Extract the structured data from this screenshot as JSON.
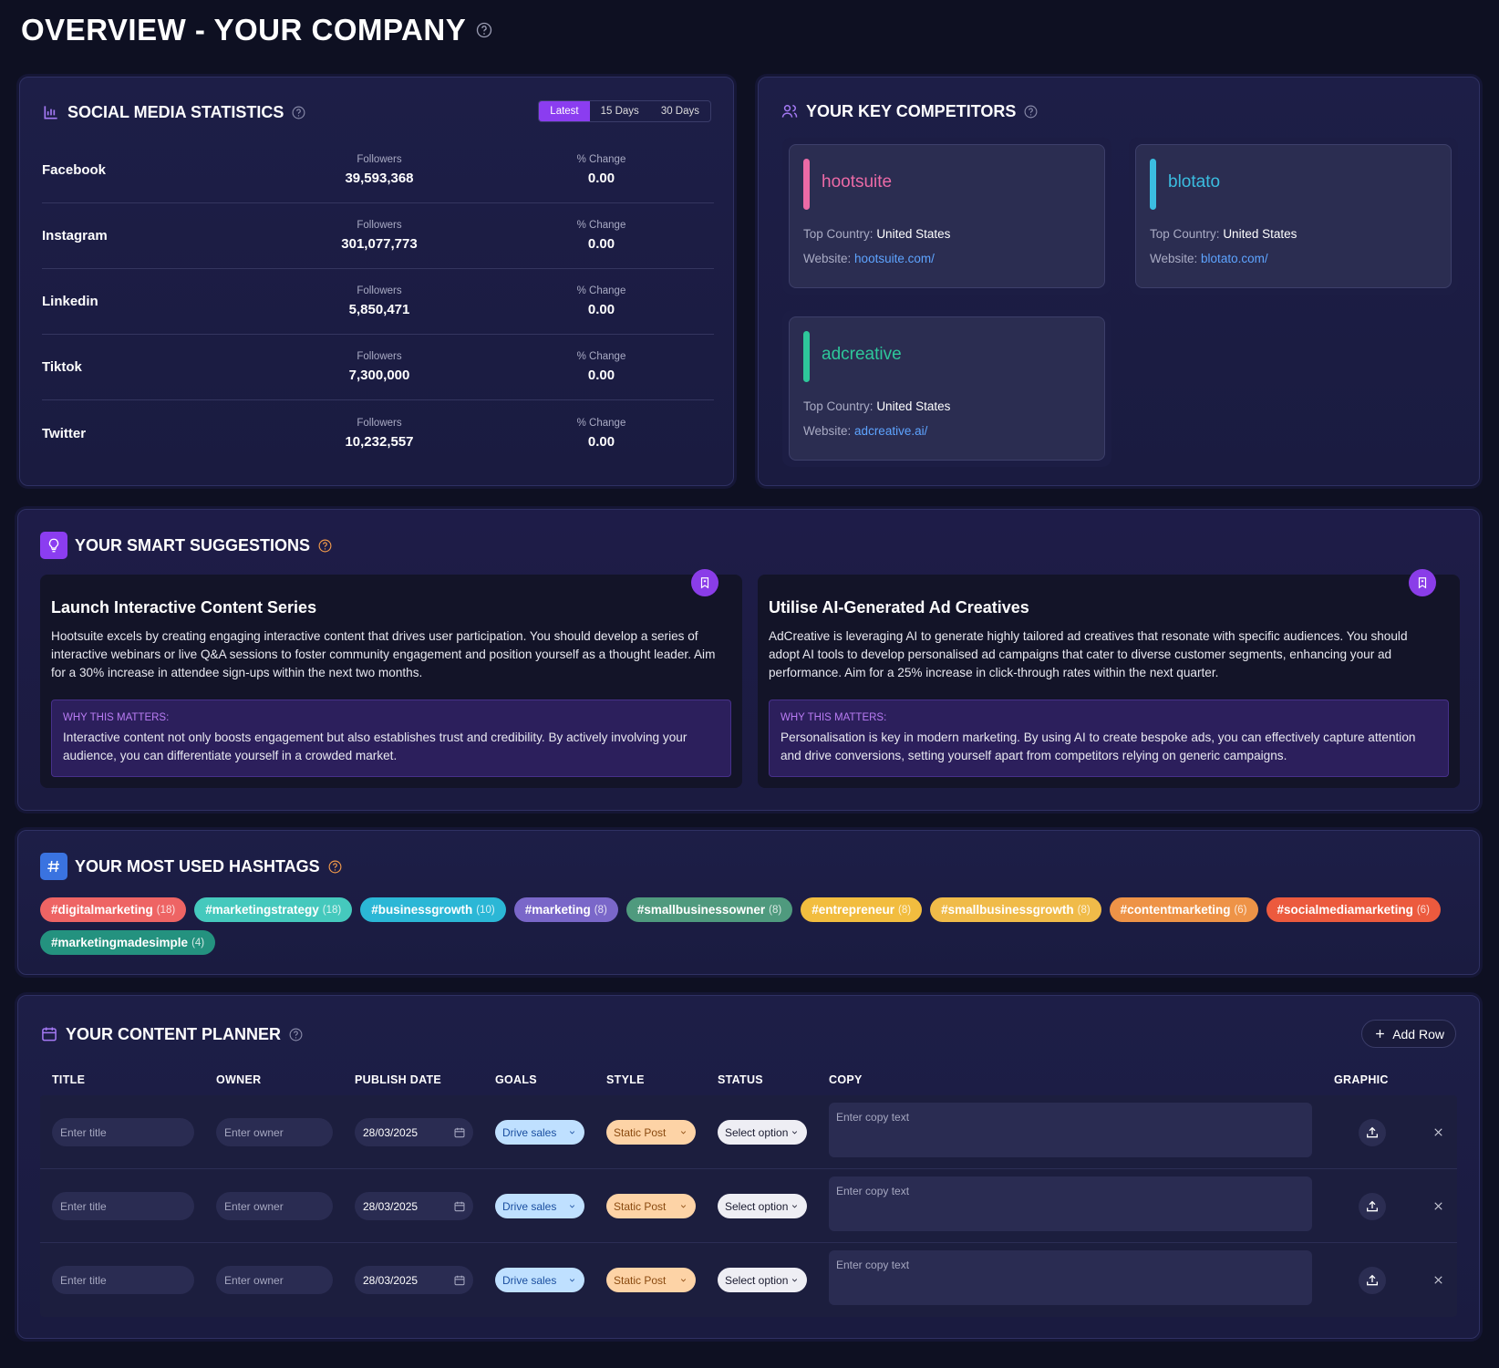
{
  "header": {
    "title": "OVERVIEW - YOUR COMPANY"
  },
  "social": {
    "title": "SOCIAL MEDIA STATISTICS",
    "tabs": [
      "Latest",
      "15 Days",
      "30 Days"
    ],
    "followers_label": "Followers",
    "change_label": "% Change",
    "rows": [
      {
        "platform": "Facebook",
        "followers": "39,593,368",
        "change": "0.00"
      },
      {
        "platform": "Instagram",
        "followers": "301,077,773",
        "change": "0.00"
      },
      {
        "platform": "Linkedin",
        "followers": "5,850,471",
        "change": "0.00"
      },
      {
        "platform": "Tiktok",
        "followers": "7,300,000",
        "change": "0.00"
      },
      {
        "platform": "Twitter",
        "followers": "10,232,557",
        "change": "0.00"
      }
    ]
  },
  "competitors": {
    "title": "YOUR KEY COMPETITORS",
    "country_label": "Top Country:",
    "website_label": "Website:",
    "items": [
      {
        "name": "hootsuite",
        "color": "#ec6aa6",
        "country": "United States",
        "website": "hootsuite.com/"
      },
      {
        "name": "blotato",
        "color": "#3bbde0",
        "country": "United States",
        "website": "blotato.com/"
      },
      {
        "name": "adcreative",
        "color": "#2ec79a",
        "country": "United States",
        "website": "adcreative.ai/"
      }
    ]
  },
  "suggestions": {
    "title": "YOUR SMART SUGGESTIONS",
    "why_label": "WHY THIS MATTERS:",
    "items": [
      {
        "title": "Launch Interactive Content Series",
        "body": "Hootsuite excels by creating engaging interactive content that drives user participation. You should develop a series of interactive webinars or live Q&A sessions to foster community engagement and position yourself as a thought leader. Aim for a 30% increase in attendee sign-ups within the next two months.",
        "why": "Interactive content not only boosts engagement but also establishes trust and credibility. By actively involving your audience, you can differentiate yourself in a crowded market."
      },
      {
        "title": "Utilise AI-Generated Ad Creatives",
        "body": "AdCreative is leveraging AI to generate highly tailored ad creatives that resonate with specific audiences. You should adopt AI tools to develop personalised ad campaigns that cater to diverse customer segments, enhancing your ad performance. Aim for a 25% increase in click-through rates within the next quarter.",
        "why": "Personalisation is key in modern marketing. By using AI to create bespoke ads, you can effectively capture attention and drive conversions, setting yourself apart from competitors relying on generic campaigns."
      }
    ]
  },
  "hashtags": {
    "title": "YOUR MOST USED HASHTAGS",
    "items": [
      {
        "tag": "#digitalmarketing",
        "count": "(18)",
        "color": "#ee6464"
      },
      {
        "tag": "#marketingstrategy",
        "count": "(18)",
        "color": "#45c9bd"
      },
      {
        "tag": "#businessgrowth",
        "count": "(10)",
        "color": "#2bb7d6"
      },
      {
        "tag": "#marketing",
        "count": "(8)",
        "color": "#7a67c9"
      },
      {
        "tag": "#smallbusinessowner",
        "count": "(8)",
        "color": "#4f9a7e"
      },
      {
        "tag": "#entrepreneur",
        "count": "(8)",
        "color": "#f2bd3f"
      },
      {
        "tag": "#smallbusinessgrowth",
        "count": "(8)",
        "color": "#f0bb49"
      },
      {
        "tag": "#contentmarketing",
        "count": "(6)",
        "color": "#ee9347"
      },
      {
        "tag": "#socialmediamarketing",
        "count": "(6)",
        "color": "#ec5a3e"
      },
      {
        "tag": "#marketingmadesimple",
        "count": "(4)",
        "color": "#24927f"
      }
    ]
  },
  "planner": {
    "title": "YOUR CONTENT PLANNER",
    "add_row": "Add Row",
    "columns": [
      "TITLE",
      "OWNER",
      "PUBLISH DATE",
      "GOALS",
      "STYLE",
      "STATUS",
      "COPY",
      "GRAPHIC"
    ],
    "rows": [
      {
        "title": "Enter title",
        "owner": "Enter owner",
        "date": "28/03/2025",
        "goal": "Drive sales",
        "style": "Static Post",
        "status": "Select option",
        "copy": "Enter copy text"
      },
      {
        "title": "Enter title",
        "owner": "Enter owner",
        "date": "28/03/2025",
        "goal": "Drive sales",
        "style": "Static Post",
        "status": "Select option",
        "copy": "Enter copy text"
      },
      {
        "title": "Enter title",
        "owner": "Enter owner",
        "date": "28/03/2025",
        "goal": "Drive sales",
        "style": "Static Post",
        "status": "Select option",
        "copy": "Enter copy text"
      }
    ]
  }
}
